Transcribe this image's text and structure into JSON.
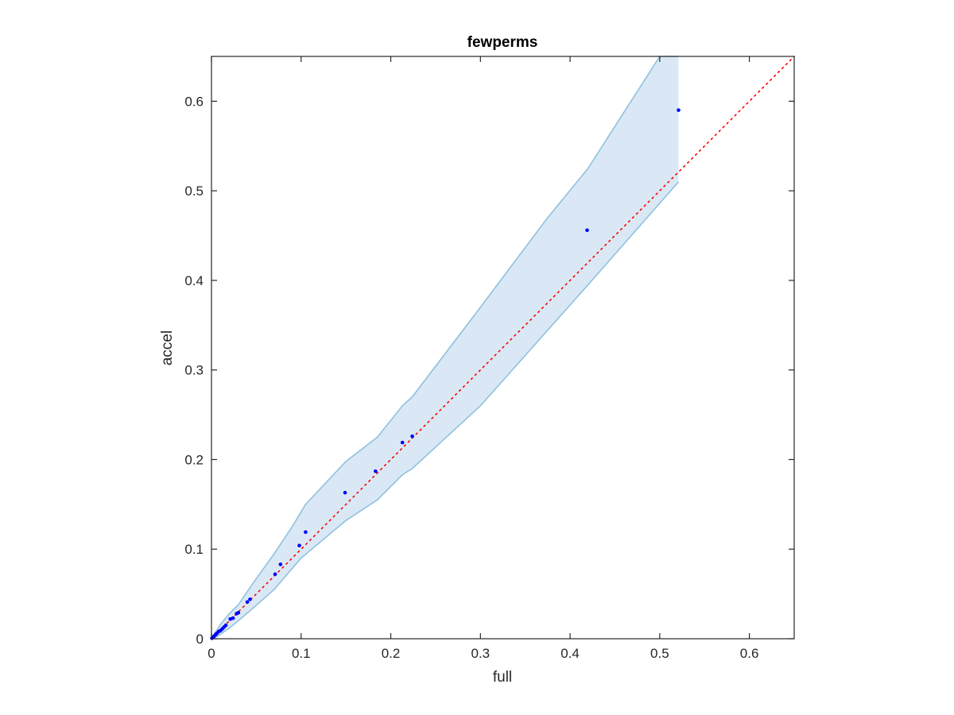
{
  "chart_data": {
    "type": "scatter",
    "title": "fewperms",
    "xlabel": "full",
    "ylabel": "accel",
    "xlim": [
      0,
      0.65
    ],
    "ylim": [
      0,
      0.65
    ],
    "xticks": [
      0,
      0.1,
      0.2,
      0.3,
      0.4,
      0.5,
      0.6
    ],
    "yticks": [
      0,
      0.1,
      0.2,
      0.3,
      0.4,
      0.5,
      0.6
    ],
    "xtick_labels": [
      "0",
      "0.1",
      "0.2",
      "0.3",
      "0.4",
      "0.5",
      "0.6"
    ],
    "ytick_labels": [
      "0",
      "0.1",
      "0.2",
      "0.3",
      "0.4",
      "0.5",
      "0.6"
    ],
    "grid": false,
    "colors": {
      "points": "#0000ff",
      "band_fill": "#d9e8f4",
      "band_edge": "#8fc1e0",
      "reference_line": "#ff0000",
      "axes": "#262626"
    },
    "points": [
      {
        "x": 0.0005,
        "y": 0.0005
      },
      {
        "x": 0.001,
        "y": 0.001
      },
      {
        "x": 0.002,
        "y": 0.002
      },
      {
        "x": 0.003,
        "y": 0.003
      },
      {
        "x": 0.004,
        "y": 0.004
      },
      {
        "x": 0.005,
        "y": 0.005
      },
      {
        "x": 0.006,
        "y": 0.006
      },
      {
        "x": 0.008,
        "y": 0.008
      },
      {
        "x": 0.01,
        "y": 0.009
      },
      {
        "x": 0.012,
        "y": 0.011
      },
      {
        "x": 0.014,
        "y": 0.013
      },
      {
        "x": 0.016,
        "y": 0.015
      },
      {
        "x": 0.021,
        "y": 0.022
      },
      {
        "x": 0.024,
        "y": 0.023
      },
      {
        "x": 0.028,
        "y": 0.028
      },
      {
        "x": 0.03,
        "y": 0.029
      },
      {
        "x": 0.04,
        "y": 0.041
      },
      {
        "x": 0.043,
        "y": 0.044
      },
      {
        "x": 0.071,
        "y": 0.072
      },
      {
        "x": 0.077,
        "y": 0.083
      },
      {
        "x": 0.098,
        "y": 0.104
      },
      {
        "x": 0.105,
        "y": 0.119
      },
      {
        "x": 0.149,
        "y": 0.163
      },
      {
        "x": 0.183,
        "y": 0.187
      },
      {
        "x": 0.213,
        "y": 0.219
      },
      {
        "x": 0.224,
        "y": 0.226
      },
      {
        "x": 0.419,
        "y": 0.456
      },
      {
        "x": 0.521,
        "y": 0.59
      }
    ],
    "band_upper": [
      [
        0,
        0
      ],
      [
        0.005,
        0.008
      ],
      [
        0.01,
        0.016
      ],
      [
        0.02,
        0.028
      ],
      [
        0.03,
        0.038
      ],
      [
        0.045,
        0.06
      ],
      [
        0.07,
        0.095
      ],
      [
        0.09,
        0.125
      ],
      [
        0.105,
        0.15
      ],
      [
        0.15,
        0.198
      ],
      [
        0.185,
        0.225
      ],
      [
        0.213,
        0.26
      ],
      [
        0.224,
        0.27
      ],
      [
        0.3,
        0.37
      ],
      [
        0.375,
        0.47
      ],
      [
        0.42,
        0.525
      ],
      [
        0.5,
        0.65
      ],
      [
        0.521,
        0.65
      ]
    ],
    "band_lower": [
      [
        0,
        0
      ],
      [
        0.005,
        0.002
      ],
      [
        0.01,
        0.005
      ],
      [
        0.02,
        0.012
      ],
      [
        0.03,
        0.02
      ],
      [
        0.045,
        0.033
      ],
      [
        0.07,
        0.055
      ],
      [
        0.1,
        0.09
      ],
      [
        0.15,
        0.132
      ],
      [
        0.185,
        0.155
      ],
      [
        0.213,
        0.183
      ],
      [
        0.224,
        0.19
      ],
      [
        0.3,
        0.26
      ],
      [
        0.42,
        0.395
      ],
      [
        0.521,
        0.51
      ]
    ],
    "reference_line": {
      "x": [
        0,
        0.65
      ],
      "y": [
        0,
        0.65
      ],
      "style": "dotted"
    }
  }
}
